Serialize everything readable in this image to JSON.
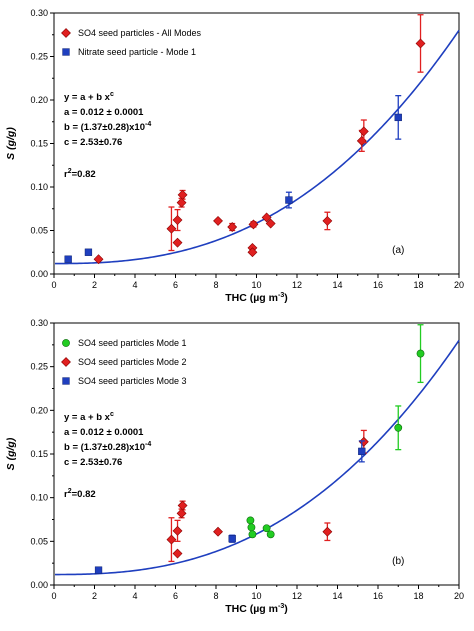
{
  "chart_data": [
    {
      "type": "scatter",
      "panel_label": "(a)",
      "xlabel": {
        "pre": "THC (µg m",
        "sup": "-3",
        "post": ")"
      },
      "ylabel": "S (g/g)",
      "xlim": [
        0,
        20
      ],
      "ylim": [
        0,
        0.3
      ],
      "xticks": [
        "0",
        "2",
        "4",
        "6",
        "8",
        "10",
        "12",
        "14",
        "16",
        "18",
        "20"
      ],
      "yticks": [
        "0.00",
        "0.05",
        "0.10",
        "0.15",
        "0.20",
        "0.25",
        "0.30"
      ],
      "legend": {
        "placement": "top-left"
      },
      "equation": {
        "line1": {
          "pre": "y = a + b x",
          "sup": "c"
        },
        "line2": {
          "pre": "a = 0.012 ± 0.0001"
        },
        "line3": {
          "pre": "b = (1.37±0.28)x10",
          "sup": "-4"
        },
        "line4": {
          "pre": "c = 2.53±0.76"
        },
        "line5": {
          "pre": "r",
          "sup": "2",
          "post": "=0.82"
        }
      },
      "fit": {
        "a": 0.012,
        "b": 0.000137,
        "c": 2.53,
        "color": "#1f3fbf"
      },
      "series": [
        {
          "name": "SO4 seed particles - All Modes",
          "marker": "diamond",
          "color": "#e02020",
          "errcolor": "#e02020",
          "points": [
            {
              "x": 2.2,
              "y": 0.017,
              "err": 0
            },
            {
              "x": 5.8,
              "y": 0.052,
              "err": 0.025
            },
            {
              "x": 6.1,
              "y": 0.036,
              "err": 0
            },
            {
              "x": 6.1,
              "y": 0.062,
              "err": 0.012
            },
            {
              "x": 6.3,
              "y": 0.082,
              "err": 0.005
            },
            {
              "x": 6.35,
              "y": 0.091,
              "err": 0.005
            },
            {
              "x": 8.1,
              "y": 0.061,
              "err": 0
            },
            {
              "x": 8.8,
              "y": 0.054,
              "err": 0.004
            },
            {
              "x": 9.8,
              "y": 0.03,
              "err": 0
            },
            {
              "x": 9.8,
              "y": 0.025,
              "err": 0
            },
            {
              "x": 9.85,
              "y": 0.057,
              "err": 0.003
            },
            {
              "x": 10.5,
              "y": 0.065,
              "err": 0
            },
            {
              "x": 10.7,
              "y": 0.058,
              "err": 0
            },
            {
              "x": 13.5,
              "y": 0.061,
              "err": 0.01
            },
            {
              "x": 15.2,
              "y": 0.153,
              "err": 0.012
            },
            {
              "x": 15.3,
              "y": 0.164,
              "err": 0.013
            },
            {
              "x": 18.1,
              "y": 0.265,
              "err": 0.033
            }
          ]
        },
        {
          "name": "Nitrate seed particle - Mode 1",
          "marker": "square",
          "color": "#1f3fbf",
          "errcolor": "#1f3fbf",
          "points": [
            {
              "x": 0.7,
              "y": 0.017,
              "err": 0
            },
            {
              "x": 1.7,
              "y": 0.025,
              "err": 0
            },
            {
              "x": 11.6,
              "y": 0.085,
              "err": 0.009
            },
            {
              "x": 17.0,
              "y": 0.18,
              "err": 0.025
            }
          ]
        }
      ]
    },
    {
      "type": "scatter",
      "panel_label": "(b)",
      "xlabel": {
        "pre": "THC (µg m",
        "sup": "-3",
        "post": ")"
      },
      "ylabel": "S (g/g)",
      "xlim": [
        0,
        20
      ],
      "ylim": [
        0,
        0.3
      ],
      "xticks": [
        "0",
        "2",
        "4",
        "6",
        "8",
        "10",
        "12",
        "14",
        "16",
        "18",
        "20"
      ],
      "yticks": [
        "0.00",
        "0.05",
        "0.10",
        "0.15",
        "0.20",
        "0.25",
        "0.30"
      ],
      "legend": {
        "placement": "top-left"
      },
      "equation": {
        "line1": {
          "pre": "y = a + b x",
          "sup": "c"
        },
        "line2": {
          "pre": "a = 0.012 ± 0.0001"
        },
        "line3": {
          "pre": "b = (1.37±0.28)x10",
          "sup": "-4"
        },
        "line4": {
          "pre": "c = 2.53±0.76"
        },
        "line5": {
          "pre": "r",
          "sup": "2",
          "post": "=0.82"
        }
      },
      "fit": {
        "a": 0.012,
        "b": 0.000137,
        "c": 2.53,
        "color": "#1f3fbf"
      },
      "series": [
        {
          "name": "SO4 seed particles Mode 1",
          "marker": "circle",
          "color": "#22cc22",
          "errcolor": "#22cc22",
          "points": [
            {
              "x": 9.7,
              "y": 0.074,
              "err": 0
            },
            {
              "x": 9.75,
              "y": 0.066,
              "err": 0
            },
            {
              "x": 9.8,
              "y": 0.058,
              "err": 0
            },
            {
              "x": 10.5,
              "y": 0.065,
              "err": 0
            },
            {
              "x": 10.7,
              "y": 0.058,
              "err": 0
            },
            {
              "x": 17.0,
              "y": 0.18,
              "err": 0.025
            },
            {
              "x": 18.1,
              "y": 0.265,
              "err": 0.033
            }
          ]
        },
        {
          "name": "SO4 seed particles Mode 2",
          "marker": "diamond",
          "color": "#e02020",
          "errcolor": "#e02020",
          "points": [
            {
              "x": 5.8,
              "y": 0.052,
              "err": 0.025
            },
            {
              "x": 6.1,
              "y": 0.036,
              "err": 0
            },
            {
              "x": 6.1,
              "y": 0.062,
              "err": 0.012
            },
            {
              "x": 6.3,
              "y": 0.082,
              "err": 0.005
            },
            {
              "x": 6.35,
              "y": 0.091,
              "err": 0.005
            },
            {
              "x": 8.1,
              "y": 0.061,
              "err": 0
            },
            {
              "x": 13.5,
              "y": 0.061,
              "err": 0.01
            },
            {
              "x": 15.3,
              "y": 0.164,
              "err": 0.013
            }
          ]
        },
        {
          "name": "SO4 seed particles Mode 3",
          "marker": "square",
          "color": "#1f3fbf",
          "errcolor": "#1f3fbf",
          "points": [
            {
              "x": 2.2,
              "y": 0.017,
              "err": 0
            },
            {
              "x": 8.8,
              "y": 0.053,
              "err": 0.004
            },
            {
              "x": 15.2,
              "y": 0.153,
              "err": 0.012
            }
          ]
        }
      ]
    }
  ]
}
